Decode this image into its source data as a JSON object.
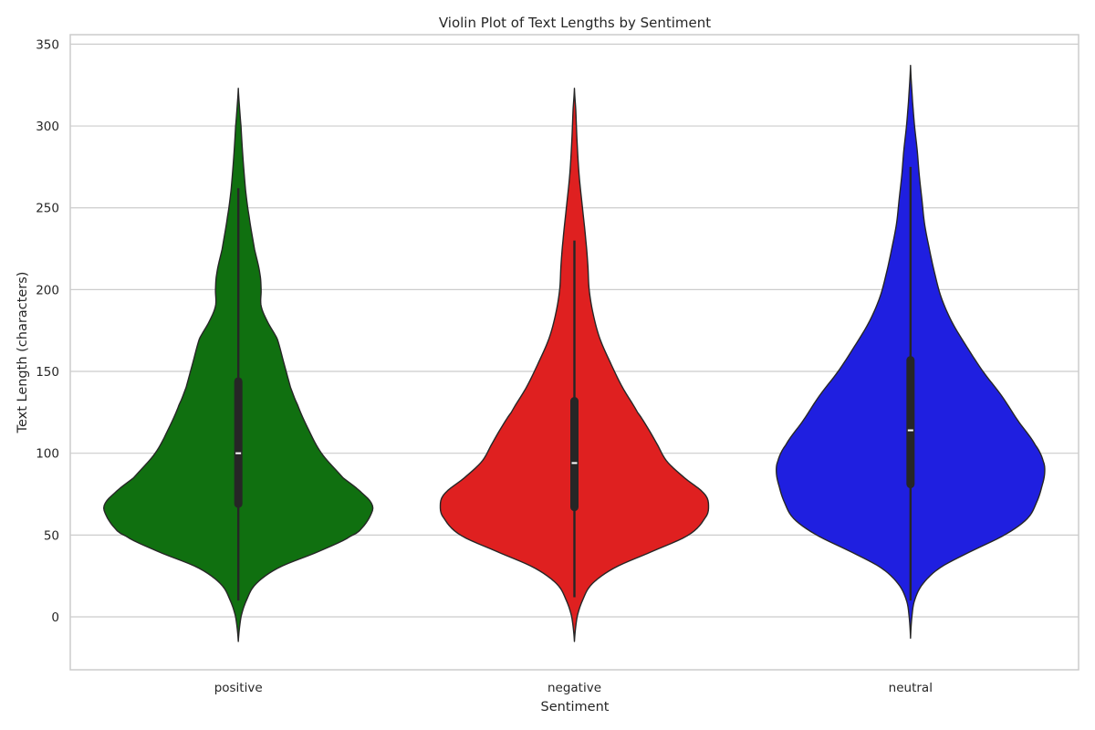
{
  "chart_data": {
    "type": "violin",
    "title": "Violin Plot of Text Lengths by Sentiment",
    "xlabel": "Sentiment",
    "ylabel": "Text Length (characters)",
    "ylim": [
      -32,
      357
    ],
    "yticks": [
      0,
      50,
      100,
      150,
      200,
      250,
      300,
      350
    ],
    "grid": true,
    "categories": [
      "positive",
      "negative",
      "neutral"
    ],
    "series": [
      {
        "category": "positive",
        "color": "#107010",
        "kde_min": -15,
        "kde_max": 323,
        "whisker_low": 10,
        "q1": 68,
        "median": 100,
        "q3": 145,
        "whisker_high": 262,
        "density_profile": [
          [
            -15,
            0
          ],
          [
            0,
            0.02
          ],
          [
            10,
            0.06
          ],
          [
            20,
            0.13
          ],
          [
            30,
            0.3
          ],
          [
            40,
            0.6
          ],
          [
            50,
            0.85
          ],
          [
            55,
            0.93
          ],
          [
            62,
            0.985
          ],
          [
            68,
            1.0
          ],
          [
            75,
            0.93
          ],
          [
            85,
            0.78
          ],
          [
            100,
            0.62
          ],
          [
            115,
            0.52
          ],
          [
            130,
            0.44
          ],
          [
            140,
            0.39
          ],
          [
            155,
            0.34
          ],
          [
            170,
            0.29
          ],
          [
            180,
            0.22
          ],
          [
            190,
            0.17
          ],
          [
            200,
            0.17
          ],
          [
            210,
            0.16
          ],
          [
            225,
            0.12
          ],
          [
            245,
            0.08
          ],
          [
            260,
            0.055
          ],
          [
            280,
            0.035
          ],
          [
            300,
            0.02
          ],
          [
            310,
            0.01
          ],
          [
            323,
            0
          ]
        ]
      },
      {
        "category": "negative",
        "color": "#df2020",
        "kde_min": -15,
        "kde_max": 323,
        "whisker_low": 12,
        "q1": 66,
        "median": 94,
        "q3": 133,
        "whisker_high": 230,
        "density_profile": [
          [
            -15,
            0
          ],
          [
            0,
            0.02
          ],
          [
            10,
            0.06
          ],
          [
            20,
            0.13
          ],
          [
            30,
            0.3
          ],
          [
            40,
            0.58
          ],
          [
            50,
            0.85
          ],
          [
            60,
            0.97
          ],
          [
            67,
            1.0
          ],
          [
            75,
            0.97
          ],
          [
            85,
            0.82
          ],
          [
            95,
            0.69
          ],
          [
            105,
            0.62
          ],
          [
            115,
            0.55
          ],
          [
            125,
            0.47
          ],
          [
            140,
            0.36
          ],
          [
            155,
            0.27
          ],
          [
            170,
            0.19
          ],
          [
            185,
            0.14
          ],
          [
            200,
            0.11
          ],
          [
            215,
            0.1
          ],
          [
            230,
            0.085
          ],
          [
            250,
            0.06
          ],
          [
            270,
            0.035
          ],
          [
            290,
            0.02
          ],
          [
            310,
            0.01
          ],
          [
            323,
            0
          ]
        ]
      },
      {
        "category": "neutral",
        "color": "#1f1fe0",
        "kde_min": -13,
        "kde_max": 337,
        "whisker_low": 10,
        "q1": 80,
        "median": 114,
        "q3": 158,
        "whisker_high": 275,
        "density_profile": [
          [
            -13,
            0
          ],
          [
            0,
            0.01
          ],
          [
            10,
            0.03
          ],
          [
            20,
            0.09
          ],
          [
            30,
            0.22
          ],
          [
            40,
            0.45
          ],
          [
            50,
            0.7
          ],
          [
            60,
            0.87
          ],
          [
            70,
            0.94
          ],
          [
            80,
            0.98
          ],
          [
            88,
            1.0
          ],
          [
            95,
            0.99
          ],
          [
            105,
            0.93
          ],
          [
            120,
            0.8
          ],
          [
            135,
            0.68
          ],
          [
            150,
            0.54
          ],
          [
            165,
            0.42
          ],
          [
            180,
            0.31
          ],
          [
            195,
            0.23
          ],
          [
            210,
            0.18
          ],
          [
            225,
            0.14
          ],
          [
            240,
            0.105
          ],
          [
            255,
            0.085
          ],
          [
            270,
            0.065
          ],
          [
            285,
            0.05
          ],
          [
            300,
            0.03
          ],
          [
            315,
            0.015
          ],
          [
            337,
            0
          ]
        ]
      }
    ]
  }
}
